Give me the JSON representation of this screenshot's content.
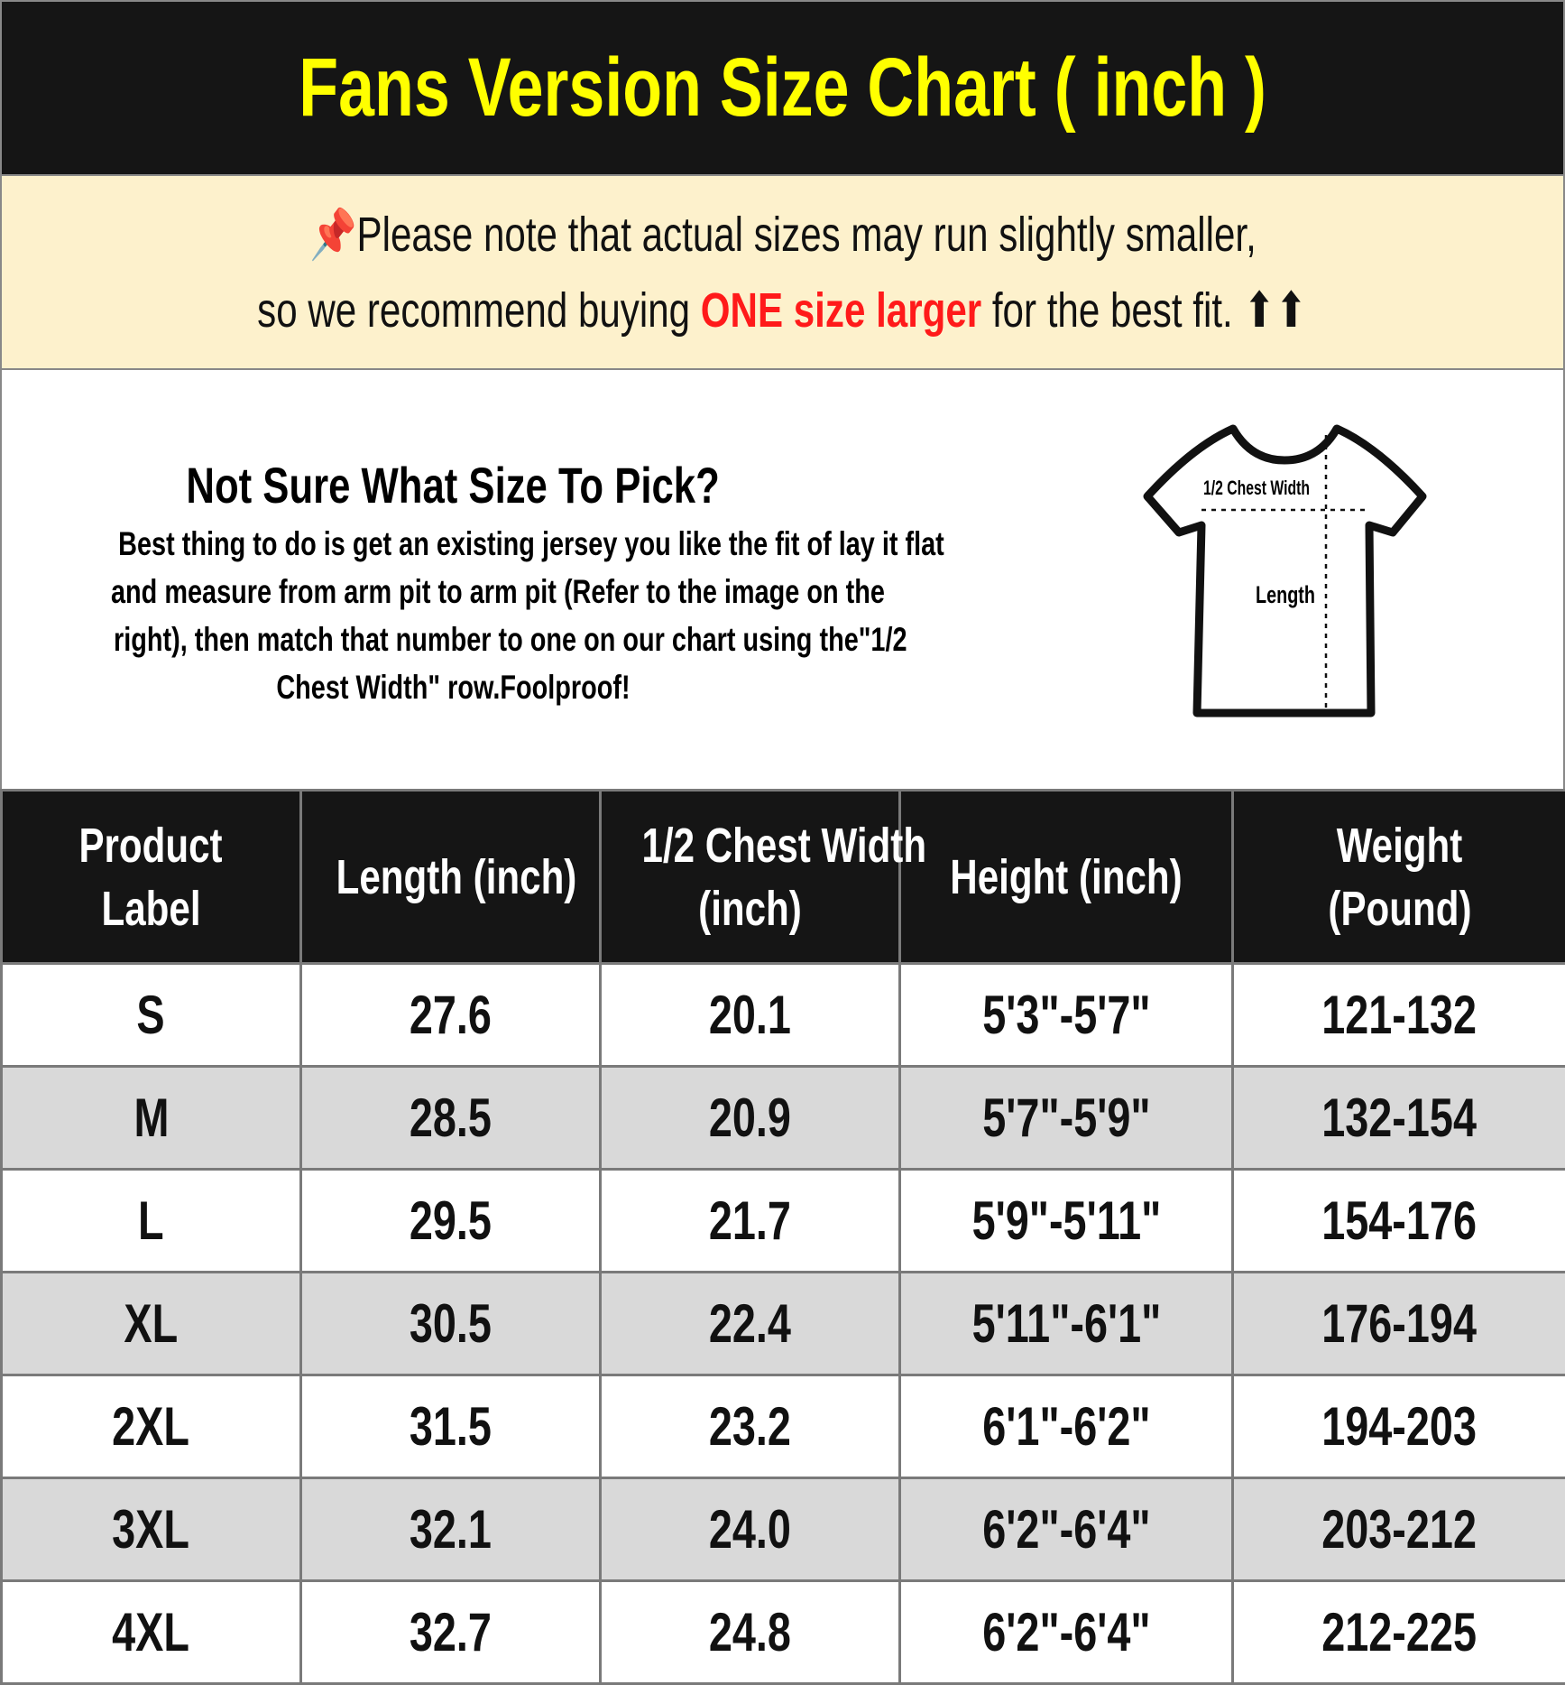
{
  "title": "Fans Version Size Chart ( inch )",
  "note": {
    "line1": "Please note that actual sizes may run slightly smaller,",
    "line2_pre": "so we recommend buying ",
    "line2_highlight": "ONE size larger",
    "line2_post": " for the best fit. ⬆⬆",
    "pin_icon": "pushpin-icon",
    "colors": {
      "highlight": "#ff1a1a",
      "background": "#fdf1cc"
    }
  },
  "info": {
    "heading": "Not Sure What Size To Pick?",
    "lines": [
      "Best thing to do is get an existing jersey you like the fit of lay it flat",
      "and measure from arm pit to arm pit (Refer to the image on the",
      "right), then match that number to one on our chart using the\"1/2",
      "Chest Width\" row.Foolproof!"
    ],
    "diagram": {
      "chest_label": "1/2 Chest Width",
      "length_label": "Length"
    }
  },
  "table": {
    "headers": [
      [
        "Product",
        "Label"
      ],
      [
        "Length (inch)"
      ],
      [
        "1/2 Chest Width",
        "(inch)"
      ],
      [
        "Height (inch)"
      ],
      [
        "Weight",
        "(Pound)"
      ]
    ],
    "rows": [
      [
        "S",
        "27.6",
        "20.1",
        "5'3\"-5'7\"",
        "121-132"
      ],
      [
        "M",
        "28.5",
        "20.9",
        "5'7\"-5'9\"",
        "132-154"
      ],
      [
        "L",
        "29.5",
        "21.7",
        "5'9\"-5'11\"",
        "154-176"
      ],
      [
        "XL",
        "30.5",
        "22.4",
        "5'11\"-6'1\"",
        "176-194"
      ],
      [
        "2XL",
        "31.5",
        "23.2",
        "6'1\"-6'2\"",
        "194-203"
      ],
      [
        "3XL",
        "32.1",
        "24.0",
        "6'2\"-6'4\"",
        "203-212"
      ],
      [
        "4XL",
        "32.7",
        "24.8",
        "6'2\"-6'4\"",
        "212-225"
      ]
    ]
  },
  "colors": {
    "title_text": "#ffff00",
    "header_bg": "#151515",
    "alt_row": "#d9d9d9"
  }
}
